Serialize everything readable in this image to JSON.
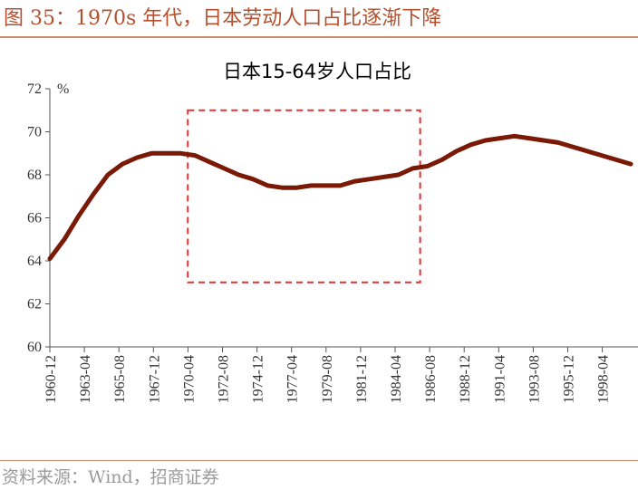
{
  "figure": {
    "title": "图 35：1970s 年代，日本劳动人口占比逐渐下降",
    "source": "资料来源：Wind，招商证券"
  },
  "chart_data": {
    "type": "line",
    "title": "日本15-64岁人口占比",
    "ylabel": "%",
    "xlabel": "",
    "ylim": [
      60,
      72
    ],
    "y_ticks": [
      60,
      62,
      64,
      66,
      68,
      70,
      72
    ],
    "grid": false,
    "x_tick_labels": [
      "1960-12",
      "1963-04",
      "1965-08",
      "1967-12",
      "1970-04",
      "1972-08",
      "1974-12",
      "1977-04",
      "1979-08",
      "1981-12",
      "1984-04",
      "1986-08",
      "1988-12",
      "1991-04",
      "1993-08",
      "1995-12",
      "1998-04"
    ],
    "x_range": [
      1960,
      2000
    ],
    "series": [
      {
        "color": "#7a1a06",
        "x": [
          1960,
          1961,
          1962,
          1963,
          1964,
          1965,
          1966,
          1967,
          1968,
          1969,
          1970,
          1971,
          1972,
          1973,
          1974,
          1975,
          1976,
          1977,
          1978,
          1979,
          1980,
          1981,
          1982,
          1983,
          1984,
          1985,
          1986,
          1987,
          1988,
          1989,
          1990,
          1991,
          1992,
          1993,
          1994,
          1995,
          1996,
          1997,
          1998,
          1999,
          2000
        ],
        "y": [
          64.1,
          65.0,
          66.1,
          67.1,
          68.0,
          68.5,
          68.8,
          69.0,
          69.0,
          69.0,
          68.9,
          68.6,
          68.3,
          68.0,
          67.8,
          67.5,
          67.4,
          67.4,
          67.5,
          67.5,
          67.5,
          67.7,
          67.8,
          67.9,
          68.0,
          68.3,
          68.4,
          68.7,
          69.1,
          69.4,
          69.6,
          69.7,
          69.8,
          69.7,
          69.6,
          69.5,
          69.3,
          69.1,
          68.9,
          68.7,
          68.5
        ]
      }
    ],
    "highlight_box": {
      "x_range": [
        1969.5,
        1985.5
      ],
      "y_range": [
        63.0,
        71.0
      ],
      "color": "#e8312f",
      "style": "dashed"
    }
  }
}
